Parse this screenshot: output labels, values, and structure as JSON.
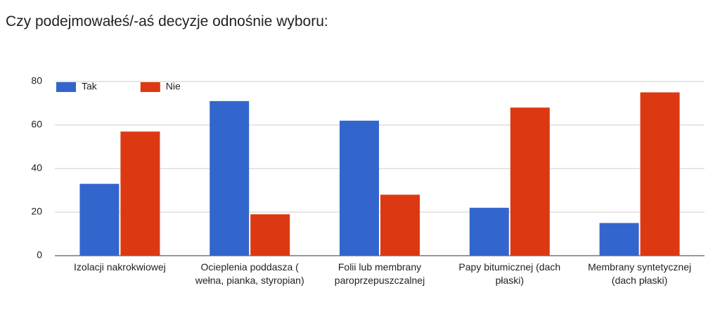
{
  "chart_data": {
    "type": "bar",
    "title": "Czy podejmowałeś/-aś decyzje odnośnie wyboru:",
    "categories": [
      "Izolacji nakrokwiowej",
      "Ocieplenia poddasza ( wełna, pianka, styropian)",
      "Folii lub membrany paroprzepuszczalnej",
      "Papy bitumicznej (dach płaski)",
      "Membrany syntetycznej (dach płaski)"
    ],
    "series": [
      {
        "name": "Tak",
        "color": "#3366cc",
        "values": [
          33,
          71,
          62,
          22,
          15
        ]
      },
      {
        "name": "Nie",
        "color": "#dc3912",
        "values": [
          57,
          19,
          28,
          68,
          75
        ]
      }
    ],
    "ylim": [
      0,
      80
    ],
    "yticks": [
      0,
      20,
      40,
      60,
      80
    ],
    "grid": true,
    "legend": "top-left"
  }
}
